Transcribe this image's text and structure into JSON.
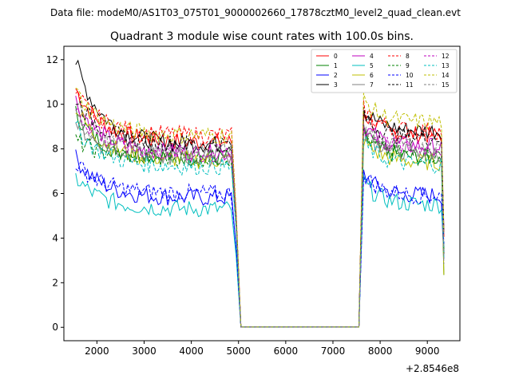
{
  "figure": {
    "suptitle": "Data file: modeM0/AS1T03_075T01_9000002660_17878cztM0_level2_quad_clean.evt",
    "offset_label": "+2.8546e8"
  },
  "chart_data": {
    "type": "line",
    "title": "Quadrant 3 module wise count rates with 100.0s bins.",
    "xlabel": "",
    "ylabel": "",
    "xlim": [
      1300,
      9690
    ],
    "ylim": [
      -0.6,
      12.6
    ],
    "xticks": [
      2000,
      3000,
      4000,
      5000,
      6000,
      7000,
      8000,
      9000
    ],
    "xtick_labels": [
      "2000",
      "3000",
      "4000",
      "5000",
      "6000",
      "7000",
      "8000",
      "9000"
    ],
    "yticks": [
      0,
      2,
      4,
      6,
      8,
      10,
      12
    ],
    "ytick_labels": [
      "0",
      "2",
      "4",
      "6",
      "8",
      "10",
      "12"
    ],
    "x_offset": 285460000,
    "legend_location": "upper right",
    "x_first_segment": [
      1550,
      4850
    ],
    "gap_x": [
      5050,
      7550
    ],
    "x_second_segment": [
      7650,
      9350
    ],
    "series": [
      {
        "name": "0",
        "color": "#ff0000",
        "dash": "solid",
        "start": 10.7,
        "level1": 8.3,
        "level2": 8.6
      },
      {
        "name": "1",
        "color": "#008000",
        "dash": "solid",
        "start": 9.6,
        "level1": 7.6,
        "level2": 7.6
      },
      {
        "name": "2",
        "color": "#0000ff",
        "dash": "solid",
        "start": 7.6,
        "level1": 5.8,
        "level2": 5.9
      },
      {
        "name": "3",
        "color": "#000000",
        "dash": "solid",
        "start": 11.9,
        "level1": 8.2,
        "level2": 8.8
      },
      {
        "name": "4",
        "color": "#bf00bf",
        "dash": "solid",
        "start": 10.2,
        "level1": 7.8,
        "level2": 8.1
      },
      {
        "name": "5",
        "color": "#00bfbf",
        "dash": "solid",
        "start": 6.7,
        "level1": 5.3,
        "level2": 5.5
      },
      {
        "name": "6",
        "color": "#bfbf00",
        "dash": "solid",
        "start": 9.9,
        "level1": 7.5,
        "level2": 7.4
      },
      {
        "name": "7",
        "color": "#808080",
        "dash": "solid",
        "start": 9.2,
        "level1": 7.6,
        "level2": 7.8
      },
      {
        "name": "8",
        "color": "#ff0000",
        "dash": "dashed",
        "start": 10.5,
        "level1": 8.6,
        "level2": 8.8
      },
      {
        "name": "9",
        "color": "#008000",
        "dash": "dashed",
        "start": 8.4,
        "level1": 7.6,
        "level2": 7.7
      },
      {
        "name": "10",
        "color": "#0000ff",
        "dash": "dashed",
        "start": 7.4,
        "level1": 6.0,
        "level2": 5.9
      },
      {
        "name": "11",
        "color": "#000000",
        "dash": "dashed",
        "start": 10.3,
        "level1": 8.2,
        "level2": 8.5
      },
      {
        "name": "12",
        "color": "#bf00bf",
        "dash": "dashed",
        "start": 9.8,
        "level1": 7.8,
        "level2": 8.0
      },
      {
        "name": "13",
        "color": "#00bfbf",
        "dash": "dashed",
        "start": 9.0,
        "level1": 7.2,
        "level2": 7.3
      },
      {
        "name": "14",
        "color": "#bfbf00",
        "dash": "dashed",
        "start": 10.6,
        "level1": 8.6,
        "level2": 9.2
      },
      {
        "name": "15",
        "color": "#808080",
        "dash": "dashed",
        "start": 9.4,
        "level1": 7.9,
        "level2": 8.0
      }
    ]
  }
}
